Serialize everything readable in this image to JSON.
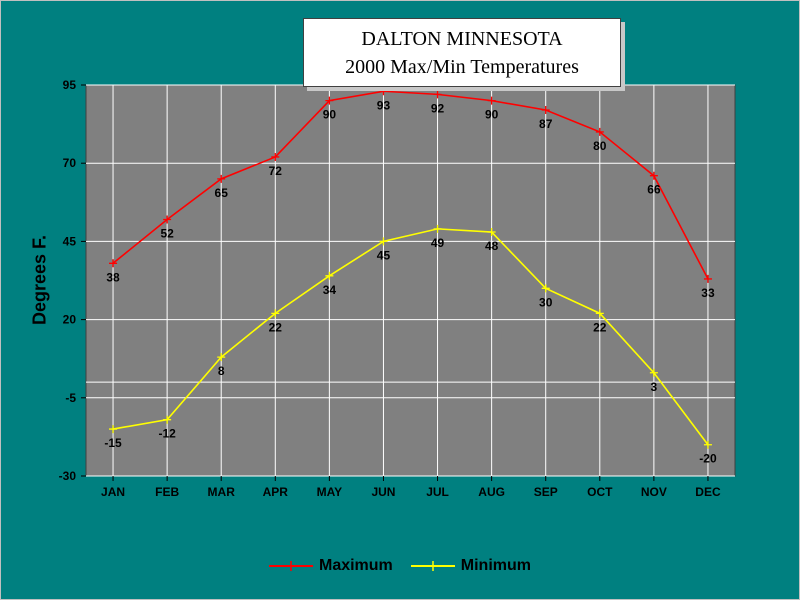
{
  "title_lines": [
    "DALTON MINNESOTA",
    "2000 Max/Min Temperatures"
  ],
  "colors": {
    "background": "#008080",
    "plot_area": "#808080",
    "grid": "#ffffff",
    "maximum": "#ff0000",
    "minimum": "#ffff00"
  },
  "chart_data": {
    "type": "line",
    "title": "DALTON MINNESOTA 2000 Max/Min Temperatures",
    "xlabel": "",
    "ylabel": "Degrees F.",
    "categories": [
      "JAN",
      "FEB",
      "MAR",
      "APR",
      "MAY",
      "JUN",
      "JUL",
      "AUG",
      "SEP",
      "OCT",
      "NOV",
      "DEC"
    ],
    "ylim": [
      -30,
      95
    ],
    "yticks": [
      -30,
      -5,
      20,
      45,
      70,
      95
    ],
    "grid": true,
    "legend_position": "bottom",
    "series": [
      {
        "name": "Maximum",
        "color": "#ff0000",
        "values": [
          38,
          52,
          65,
          72,
          90,
          93,
          92,
          90,
          87,
          80,
          66,
          33
        ]
      },
      {
        "name": "Minimum",
        "color": "#ffff00",
        "values": [
          -15,
          -12,
          8,
          22,
          34,
          45,
          49,
          48,
          30,
          22,
          3,
          -20
        ]
      }
    ]
  }
}
